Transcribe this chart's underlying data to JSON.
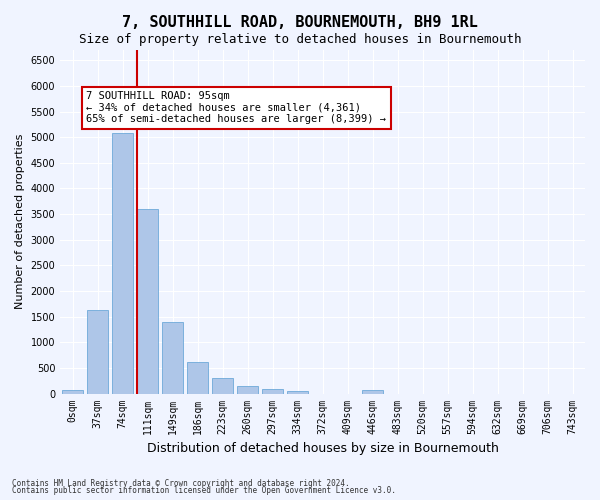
{
  "title": "7, SOUTHHILL ROAD, BOURNEMOUTH, BH9 1RL",
  "subtitle": "Size of property relative to detached houses in Bournemouth",
  "xlabel": "Distribution of detached houses by size in Bournemouth",
  "ylabel": "Number of detached properties",
  "footnote1": "Contains HM Land Registry data © Crown copyright and database right 2024.",
  "footnote2": "Contains public sector information licensed under the Open Government Licence v3.0.",
  "bar_labels": [
    "0sqm",
    "37sqm",
    "74sqm",
    "111sqm",
    "149sqm",
    "186sqm",
    "223sqm",
    "260sqm",
    "297sqm",
    "334sqm",
    "372sqm",
    "409sqm",
    "446sqm",
    "483sqm",
    "520sqm",
    "557sqm",
    "594sqm",
    "632sqm",
    "669sqm",
    "706sqm",
    "743sqm"
  ],
  "bar_values": [
    70,
    1630,
    5080,
    3590,
    1400,
    615,
    310,
    150,
    80,
    55,
    0,
    0,
    60,
    0,
    0,
    0,
    0,
    0,
    0,
    0,
    0
  ],
  "bar_color": "#aec6e8",
  "bar_edge_color": "#5a9fd4",
  "ylim": [
    0,
    6700
  ],
  "yticks": [
    0,
    500,
    1000,
    1500,
    2000,
    2500,
    3000,
    3500,
    4000,
    4500,
    5000,
    5500,
    6000,
    6500
  ],
  "vline_x": 2.5,
  "vline_color": "#cc0000",
  "annotation_text": "7 SOUTHHILL ROAD: 95sqm\n← 34% of detached houses are smaller (4,361)\n65% of semi-detached houses are larger (8,399) →",
  "annotation_box_color": "white",
  "annotation_box_edge": "#cc0000",
  "background_color": "#f0f4ff",
  "grid_color": "white",
  "title_fontsize": 11,
  "subtitle_fontsize": 9,
  "axis_label_fontsize": 8,
  "tick_fontsize": 7
}
